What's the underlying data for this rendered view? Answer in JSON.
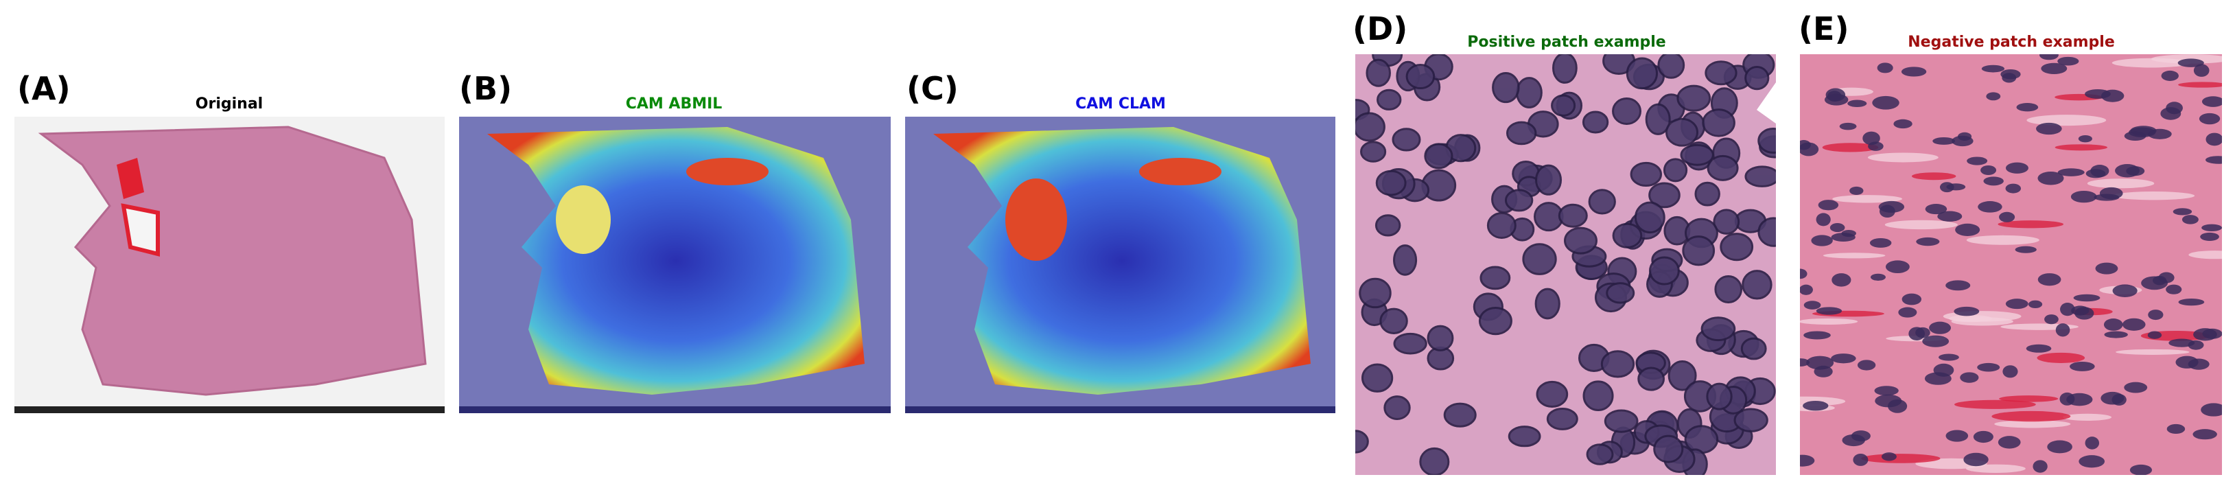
{
  "panels": [
    {
      "label": "(A)",
      "title": "Original"
    },
    {
      "label": "(B)",
      "title": "CAM ABMIL"
    },
    {
      "label": "(C)",
      "title": "CAM CLAM"
    },
    {
      "label": "(D)",
      "title": "Positive patch example"
    },
    {
      "label": "(E)",
      "title": "Negative patch example"
    }
  ]
}
